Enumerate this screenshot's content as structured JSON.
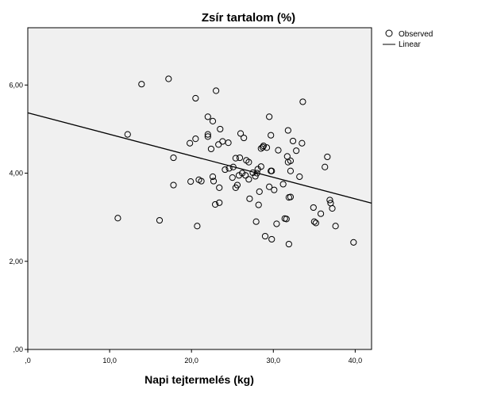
{
  "chart_data": {
    "type": "scatter",
    "title": "Zsír tartalom (%)",
    "xlabel": "Napi tejtermelés (kg)",
    "ylabel": "",
    "xlim": [
      0,
      42
    ],
    "ylim": [
      0,
      7.3
    ],
    "x_ticks": [
      0,
      10,
      20,
      30,
      40
    ],
    "x_tick_labels": [
      ",0",
      "10,0",
      "20,0",
      "30,0",
      "40,0"
    ],
    "y_ticks": [
      0,
      2,
      4,
      6
    ],
    "y_tick_labels": [
      ",00",
      "2,00",
      "4,00",
      "6,00"
    ],
    "grid": false,
    "legend": {
      "placement": "top-right",
      "entries": [
        "Observed",
        "Linear"
      ]
    },
    "colors": {
      "plot_background": "#f0f0f0",
      "marker_stroke": "#000000",
      "line": "#000000"
    },
    "series": [
      {
        "name": "Observed",
        "points": [
          [
            11.0,
            2.98
          ],
          [
            12.2,
            4.88
          ],
          [
            13.9,
            6.02
          ],
          [
            16.1,
            2.93
          ],
          [
            17.2,
            6.14
          ],
          [
            17.8,
            4.35
          ],
          [
            17.8,
            3.73
          ],
          [
            19.8,
            4.68
          ],
          [
            19.9,
            3.81
          ],
          [
            20.5,
            5.7
          ],
          [
            20.5,
            4.78
          ],
          [
            20.7,
            2.8
          ],
          [
            20.9,
            3.85
          ],
          [
            21.2,
            3.82
          ],
          [
            22.0,
            5.28
          ],
          [
            22.0,
            4.88
          ],
          [
            22.0,
            4.83
          ],
          [
            22.4,
            4.55
          ],
          [
            22.6,
            5.18
          ],
          [
            22.6,
            3.92
          ],
          [
            22.7,
            3.82
          ],
          [
            22.9,
            3.29
          ],
          [
            23.0,
            5.87
          ],
          [
            23.3,
            4.65
          ],
          [
            23.4,
            3.33
          ],
          [
            23.4,
            3.67
          ],
          [
            23.5,
            5.0
          ],
          [
            23.8,
            4.72
          ],
          [
            24.1,
            4.08
          ],
          [
            24.5,
            4.69
          ],
          [
            24.6,
            4.11
          ],
          [
            25.0,
            3.9
          ],
          [
            25.1,
            4.14
          ],
          [
            25.4,
            4.34
          ],
          [
            25.4,
            3.67
          ],
          [
            25.6,
            3.73
          ],
          [
            25.8,
            3.95
          ],
          [
            25.9,
            4.35
          ],
          [
            26.0,
            4.9
          ],
          [
            26.2,
            4.0
          ],
          [
            26.4,
            4.8
          ],
          [
            26.6,
            3.95
          ],
          [
            26.7,
            4.29
          ],
          [
            27.0,
            4.25
          ],
          [
            27.0,
            3.86
          ],
          [
            27.1,
            3.42
          ],
          [
            27.5,
            4.01
          ],
          [
            27.8,
            3.93
          ],
          [
            27.9,
            2.9
          ],
          [
            28.0,
            4.0
          ],
          [
            28.1,
            4.09
          ],
          [
            28.2,
            3.28
          ],
          [
            28.3,
            3.58
          ],
          [
            28.5,
            4.56
          ],
          [
            28.5,
            4.15
          ],
          [
            28.7,
            4.59
          ],
          [
            28.8,
            4.62
          ],
          [
            29.0,
            2.57
          ],
          [
            29.2,
            4.58
          ],
          [
            29.5,
            5.28
          ],
          [
            29.5,
            3.69
          ],
          [
            29.7,
            4.86
          ],
          [
            29.7,
            4.05
          ],
          [
            29.8,
            4.05
          ],
          [
            29.8,
            2.5
          ],
          [
            30.1,
            3.62
          ],
          [
            30.4,
            2.85
          ],
          [
            30.6,
            4.52
          ],
          [
            31.2,
            3.75
          ],
          [
            31.4,
            2.97
          ],
          [
            31.6,
            2.96
          ],
          [
            31.7,
            4.38
          ],
          [
            31.8,
            4.97
          ],
          [
            31.8,
            4.25
          ],
          [
            31.9,
            2.39
          ],
          [
            31.9,
            3.45
          ],
          [
            32.1,
            4.28
          ],
          [
            32.1,
            4.05
          ],
          [
            32.1,
            3.46
          ],
          [
            32.4,
            4.73
          ],
          [
            32.8,
            4.51
          ],
          [
            33.2,
            3.92
          ],
          [
            33.5,
            4.68
          ],
          [
            33.6,
            5.62
          ],
          [
            34.9,
            3.22
          ],
          [
            35.0,
            2.9
          ],
          [
            35.2,
            2.87
          ],
          [
            35.8,
            3.08
          ],
          [
            36.3,
            4.14
          ],
          [
            36.6,
            4.37
          ],
          [
            36.9,
            3.39
          ],
          [
            37.0,
            3.32
          ],
          [
            37.2,
            3.2
          ],
          [
            37.6,
            2.8
          ],
          [
            39.8,
            2.43
          ]
        ]
      },
      {
        "name": "Linear",
        "line": [
          [
            0,
            5.37
          ],
          [
            42,
            3.32
          ]
        ]
      }
    ]
  }
}
